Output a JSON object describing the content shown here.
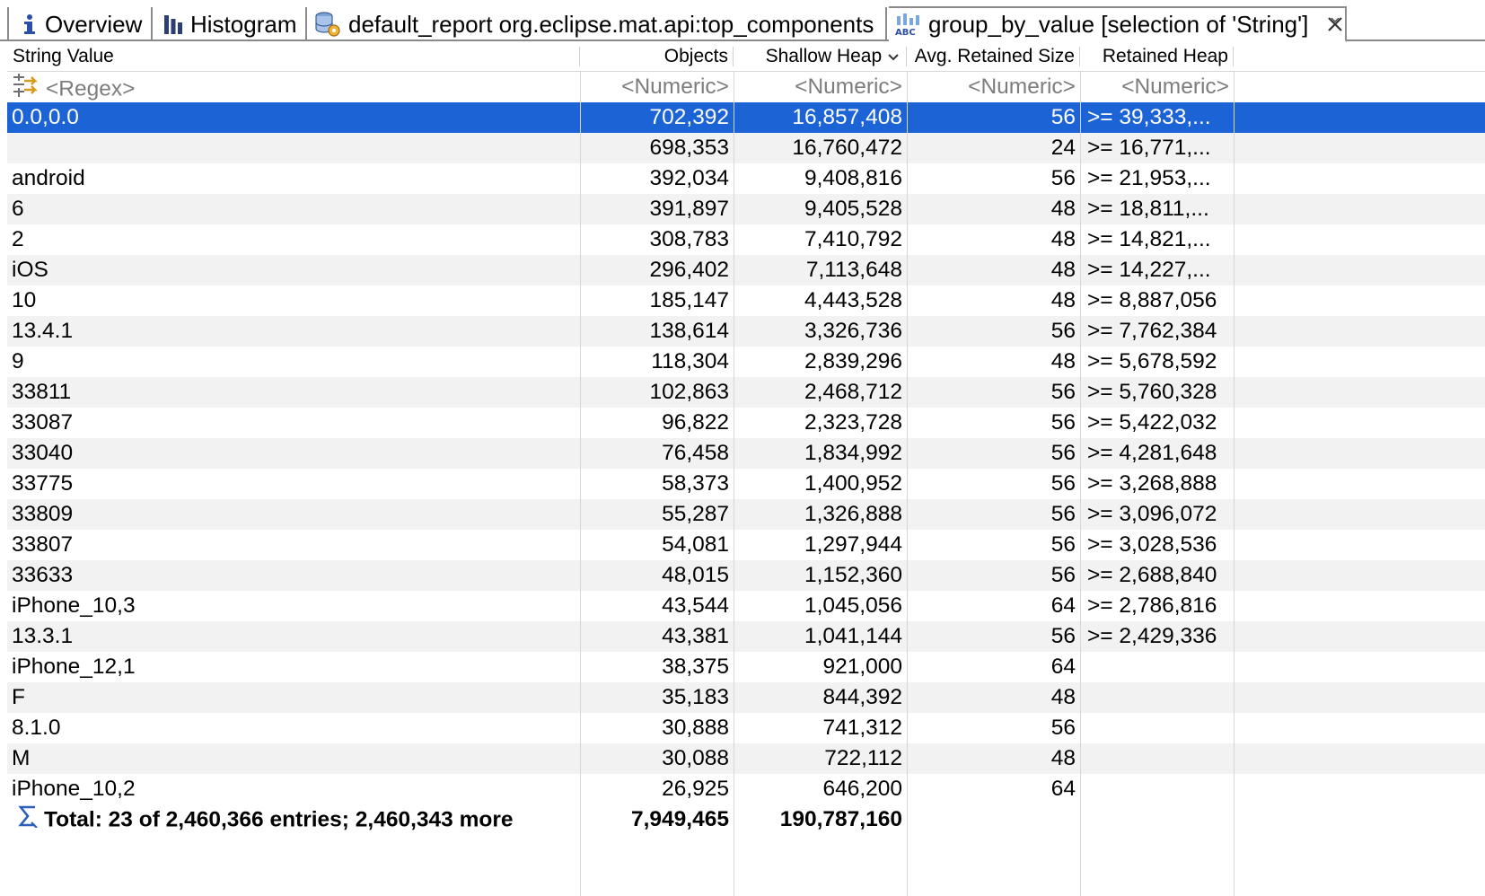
{
  "tabs": [
    {
      "id": "overview",
      "label": "Overview",
      "icon": "info-icon"
    },
    {
      "id": "histogram",
      "label": "Histogram",
      "icon": "bar-chart-icon"
    },
    {
      "id": "default_report",
      "label": "default_report  org.eclipse.mat.api:top_components",
      "icon": "report-database-icon"
    },
    {
      "id": "group_by_value",
      "label": "group_by_value  [selection of 'String']",
      "icon": "abc-chart-icon",
      "active": true,
      "close_icon": "close-icon"
    }
  ],
  "columns": {
    "string_value": "String Value",
    "objects": "Objects",
    "shallow_heap": "Shallow Heap",
    "avg_retained": "Avg. Retained Size",
    "retained_heap": "Retained Heap"
  },
  "sort_indicator_icon": "chevron-down-icon",
  "filter_row": {
    "string_value": "<Regex>",
    "objects": "<Numeric>",
    "shallow_heap": "<Numeric>",
    "avg_retained": "<Numeric>",
    "retained_heap": "<Numeric>"
  },
  "rows": [
    {
      "value": "0.0,0.0",
      "objects": "702,392",
      "shallow": "16,857,408",
      "avg": "56",
      "retained": ">= 39,333,..."
    },
    {
      "value": "",
      "objects": "698,353",
      "shallow": "16,760,472",
      "avg": "24",
      "retained": ">= 16,771,..."
    },
    {
      "value": "android",
      "objects": "392,034",
      "shallow": "9,408,816",
      "avg": "56",
      "retained": ">= 21,953,..."
    },
    {
      "value": "6",
      "objects": "391,897",
      "shallow": "9,405,528",
      "avg": "48",
      "retained": ">= 18,811,..."
    },
    {
      "value": "2",
      "objects": "308,783",
      "shallow": "7,410,792",
      "avg": "48",
      "retained": ">= 14,821,..."
    },
    {
      "value": "iOS",
      "objects": "296,402",
      "shallow": "7,113,648",
      "avg": "48",
      "retained": ">= 14,227,..."
    },
    {
      "value": "10",
      "objects": "185,147",
      "shallow": "4,443,528",
      "avg": "48",
      "retained": ">= 8,887,056"
    },
    {
      "value": "13.4.1",
      "objects": "138,614",
      "shallow": "3,326,736",
      "avg": "56",
      "retained": ">= 7,762,384"
    },
    {
      "value": "9",
      "objects": "118,304",
      "shallow": "2,839,296",
      "avg": "48",
      "retained": ">= 5,678,592"
    },
    {
      "value": "33811",
      "objects": "102,863",
      "shallow": "2,468,712",
      "avg": "56",
      "retained": ">= 5,760,328"
    },
    {
      "value": "33087",
      "objects": "96,822",
      "shallow": "2,323,728",
      "avg": "56",
      "retained": ">= 5,422,032"
    },
    {
      "value": "33040",
      "objects": "76,458",
      "shallow": "1,834,992",
      "avg": "56",
      "retained": ">= 4,281,648"
    },
    {
      "value": "33775",
      "objects": "58,373",
      "shallow": "1,400,952",
      "avg": "56",
      "retained": ">= 3,268,888"
    },
    {
      "value": "33809",
      "objects": "55,287",
      "shallow": "1,326,888",
      "avg": "56",
      "retained": ">= 3,096,072"
    },
    {
      "value": "33807",
      "objects": "54,081",
      "shallow": "1,297,944",
      "avg": "56",
      "retained": ">= 3,028,536"
    },
    {
      "value": "33633",
      "objects": "48,015",
      "shallow": "1,152,360",
      "avg": "56",
      "retained": ">= 2,688,840"
    },
    {
      "value": "iPhone_10,3",
      "objects": "43,544",
      "shallow": "1,045,056",
      "avg": "64",
      "retained": ">= 2,786,816"
    },
    {
      "value": "13.3.1",
      "objects": "43,381",
      "shallow": "1,041,144",
      "avg": "56",
      "retained": ">= 2,429,336"
    },
    {
      "value": "iPhone_12,1",
      "objects": "38,375",
      "shallow": "921,000",
      "avg": "64",
      "retained": ""
    },
    {
      "value": "F",
      "objects": "35,183",
      "shallow": "844,392",
      "avg": "48",
      "retained": ""
    },
    {
      "value": "8.1.0",
      "objects": "30,888",
      "shallow": "741,312",
      "avg": "56",
      "retained": ""
    },
    {
      "value": "M",
      "objects": "30,088",
      "shallow": "722,112",
      "avg": "48",
      "retained": ""
    },
    {
      "value": "iPhone_10,2",
      "objects": "26,925",
      "shallow": "646,200",
      "avg": "64",
      "retained": ""
    }
  ],
  "total_row": {
    "label": "Total: 23 of 2,460,366 entries; 2,460,343 more",
    "objects": "7,949,465",
    "shallow": "190,787,160",
    "icon": "sigma-icon"
  },
  "colors": {
    "selection": "#1c63d6",
    "alt_row": "#f2f2f2",
    "filter_text": "#7d7d7d"
  }
}
